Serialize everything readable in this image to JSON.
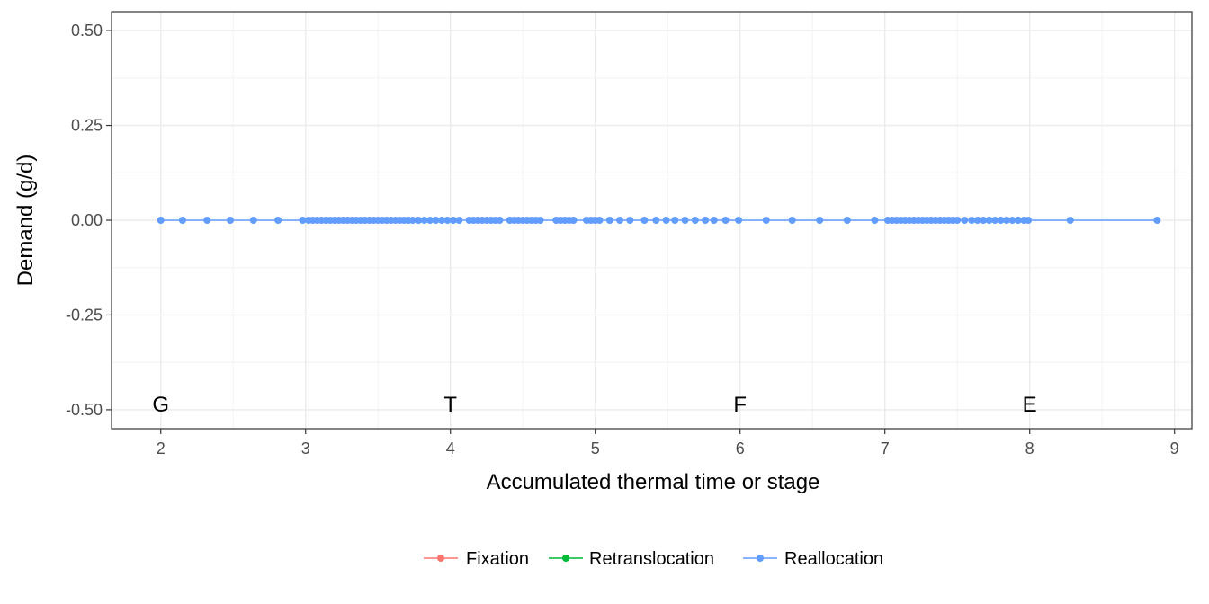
{
  "chart_data": {
    "type": "line",
    "xlabel": "Accumulated thermal time or stage",
    "ylabel": "Demand (g/d)",
    "xlim": [
      1.66,
      9.12
    ],
    "ylim": [
      -0.55,
      0.55
    ],
    "x_ticks": [
      2,
      3,
      4,
      5,
      6,
      7,
      8,
      9
    ],
    "x_tick_labels": [
      "2",
      "3",
      "4",
      "5",
      "6",
      "7",
      "8",
      "9"
    ],
    "y_ticks": [
      0.5,
      0.25,
      0,
      -0.25,
      -0.5
    ],
    "y_tick_labels": [
      "0.50",
      "0.25",
      "0.00",
      "-0.25",
      "-0.50"
    ],
    "grid": true,
    "legend_position": "bottom",
    "stage_labels": [
      {
        "text": "G",
        "x": 2,
        "y": -0.5
      },
      {
        "text": "T",
        "x": 4,
        "y": -0.5
      },
      {
        "text": "F",
        "x": 6,
        "y": -0.5
      },
      {
        "text": "E",
        "x": 8,
        "y": -0.5
      }
    ],
    "series": [
      {
        "name": "Fixation",
        "color": "#F8766D",
        "x": [],
        "y": []
      },
      {
        "name": "Retranslocation",
        "color": "#00BA38",
        "x": [],
        "y": []
      },
      {
        "name": "Reallocation",
        "color": "#619CFF",
        "x": [
          2.0,
          2.15,
          2.32,
          2.48,
          2.64,
          2.81,
          2.98,
          3.02,
          3.05,
          3.08,
          3.11,
          3.14,
          3.17,
          3.2,
          3.23,
          3.26,
          3.29,
          3.32,
          3.35,
          3.38,
          3.41,
          3.44,
          3.47,
          3.5,
          3.53,
          3.56,
          3.59,
          3.62,
          3.65,
          3.68,
          3.71,
          3.74,
          3.78,
          3.82,
          3.86,
          3.9,
          3.94,
          3.98,
          4.02,
          4.06,
          4.13,
          4.16,
          4.19,
          4.22,
          4.25,
          4.28,
          4.31,
          4.34,
          4.41,
          4.44,
          4.47,
          4.5,
          4.53,
          4.56,
          4.59,
          4.62,
          4.73,
          4.76,
          4.79,
          4.82,
          4.85,
          4.94,
          4.97,
          5.0,
          5.03,
          5.1,
          5.17,
          5.24,
          5.34,
          5.42,
          5.49,
          5.55,
          5.62,
          5.69,
          5.76,
          5.82,
          5.9,
          5.99,
          6.18,
          6.36,
          6.55,
          6.74,
          6.93,
          7.02,
          7.05,
          7.08,
          7.11,
          7.14,
          7.17,
          7.2,
          7.23,
          7.26,
          7.29,
          7.32,
          7.35,
          7.38,
          7.41,
          7.44,
          7.47,
          7.5,
          7.55,
          7.6,
          7.64,
          7.68,
          7.72,
          7.76,
          7.8,
          7.84,
          7.88,
          7.92,
          7.96,
          7.99,
          8.28,
          8.88
        ],
        "y": [
          0,
          0,
          0,
          0,
          0,
          0,
          0,
          0,
          0,
          0,
          0,
          0,
          0,
          0,
          0,
          0,
          0,
          0,
          0,
          0,
          0,
          0,
          0,
          0,
          0,
          0,
          0,
          0,
          0,
          0,
          0,
          0,
          0,
          0,
          0,
          0,
          0,
          0,
          0,
          0,
          0,
          0,
          0,
          0,
          0,
          0,
          0,
          0,
          0,
          0,
          0,
          0,
          0,
          0,
          0,
          0,
          0,
          0,
          0,
          0,
          0,
          0,
          0,
          0,
          0,
          0,
          0,
          0,
          0,
          0,
          0,
          0,
          0,
          0,
          0,
          0,
          0,
          0,
          0,
          0,
          0,
          0,
          0,
          0,
          0,
          0,
          0,
          0,
          0,
          0,
          0,
          0,
          0,
          0,
          0,
          0,
          0,
          0,
          0,
          0,
          0,
          0,
          0,
          0,
          0,
          0,
          0,
          0,
          0,
          0,
          0,
          0,
          0,
          0
        ]
      }
    ]
  }
}
